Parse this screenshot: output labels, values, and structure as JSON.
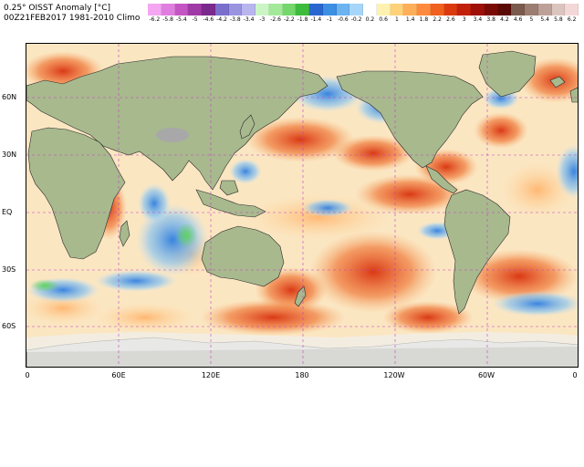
{
  "title_line1": "0.25° OISST Anomaly [°C]",
  "title_line2": "00Z21FEB2017 1981-2010 Climo",
  "colorbar": {
    "ticks": [
      "-6.2",
      "-5.8",
      "-5.4",
      "-5",
      "-4.6",
      "-4.2",
      "-3.8",
      "-3.4",
      "-3",
      "-2.6",
      "-2.2",
      "-1.8",
      "-1.4",
      "-1",
      "-0.6",
      "-0.2",
      "0.2",
      "0.6",
      "1",
      "1.4",
      "1.8",
      "2.2",
      "2.6",
      "3",
      "3.4",
      "3.8",
      "4.2",
      "4.6",
      "5",
      "5.4",
      "5.8",
      "6.2"
    ],
    "colors": [
      "#f4a6f2",
      "#e07ee0",
      "#c456c4",
      "#a03aa6",
      "#7a2a8c",
      "#7b6fce",
      "#9a93e0",
      "#b9b5ee",
      "#ccf5c6",
      "#a3e99a",
      "#73d76c",
      "#3dbb3d",
      "#2a66cf",
      "#3d8fe3",
      "#6cb4f0",
      "#a6d6fa",
      "#ffffff",
      "#fff1b0",
      "#ffd27a",
      "#ffae5a",
      "#ff8a3d",
      "#f0601e",
      "#dc3a0e",
      "#c2200a",
      "#9e1008",
      "#7a0a06",
      "#5a0a04",
      "#7b5a4e",
      "#9c7d72",
      "#bda198",
      "#dcc5be",
      "#f4d7d7"
    ]
  },
  "map": {
    "lat_labels": [
      "60N",
      "30N",
      "EQ",
      "30S",
      "60S"
    ],
    "lon_labels": [
      "0",
      "60E",
      "120E",
      "180",
      "120W",
      "60W",
      "0"
    ],
    "land_color": "#a8b98e",
    "ice_color": "#d8d8d4",
    "gridline_color": "#c040c0",
    "anomaly_warm": "#e64a1e",
    "anomaly_cool": "#3d8fe3"
  }
}
